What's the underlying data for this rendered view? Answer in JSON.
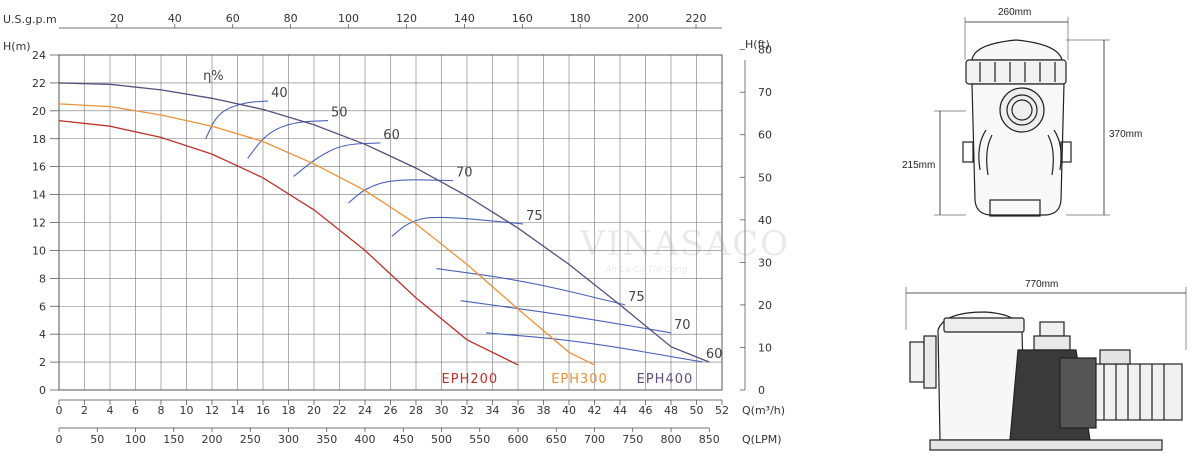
{
  "chart_data": {
    "type": "line",
    "axes": {
      "x_bottom": {
        "label": "Q(m³/h)",
        "min": 0,
        "max": 52,
        "ticks": [
          0,
          2,
          4,
          6,
          8,
          10,
          12,
          14,
          16,
          18,
          20,
          22,
          24,
          26,
          28,
          30,
          32,
          34,
          36,
          38,
          40,
          42,
          44,
          46,
          48,
          50,
          52
        ]
      },
      "x_lpm": {
        "label": "Q(LPM)",
        "ticks": [
          0,
          50,
          100,
          150,
          200,
          250,
          300,
          350,
          400,
          450,
          500,
          550,
          600,
          650,
          700,
          750,
          800,
          850
        ]
      },
      "x_top": {
        "label": "U.S.g.p.m",
        "ticks": [
          20,
          40,
          60,
          80,
          100,
          120,
          140,
          160,
          180,
          200,
          220
        ]
      },
      "y_left": {
        "label": "H(m)",
        "min": 0,
        "max": 24,
        "ticks": [
          0,
          2,
          4,
          6,
          8,
          10,
          12,
          14,
          16,
          18,
          20,
          22,
          24
        ]
      },
      "y_right": {
        "label": "H(ft)",
        "ticks": [
          0,
          10,
          20,
          30,
          40,
          50,
          60,
          70,
          80
        ]
      }
    },
    "grid": true,
    "series": [
      {
        "name": "EPH200",
        "color": "#b8322e",
        "x": [
          0,
          4,
          8,
          12,
          16,
          20,
          24,
          28,
          32,
          36
        ],
        "y": [
          19.3,
          18.9,
          18.1,
          16.9,
          15.2,
          12.9,
          10.0,
          6.6,
          3.6,
          1.8
        ]
      },
      {
        "name": "EPH300",
        "color": "#e8923a",
        "x": [
          0,
          4,
          8,
          12,
          16,
          20,
          24,
          28,
          32,
          36,
          40,
          42
        ],
        "y": [
          20.5,
          20.3,
          19.7,
          18.9,
          17.8,
          16.2,
          14.3,
          11.9,
          9.0,
          5.8,
          2.7,
          1.8
        ]
      },
      {
        "name": "EPH400",
        "color": "#5c4d7a",
        "x": [
          0,
          4,
          8,
          12,
          16,
          20,
          24,
          28,
          32,
          36,
          40,
          44,
          48,
          51
        ],
        "y": [
          22.0,
          21.9,
          21.5,
          20.9,
          20.1,
          19.0,
          17.6,
          15.9,
          13.9,
          11.6,
          9.0,
          6.1,
          3.1,
          2.0
        ]
      }
    ],
    "efficiency_label": "η%",
    "efficiency_curves": [
      {
        "label": "40",
        "points": [
          [
            11.5,
            18.0
          ],
          [
            12.5,
            19.9
          ],
          [
            14.5,
            20.6
          ],
          [
            16.4,
            20.7
          ]
        ]
      },
      {
        "label": "50",
        "points": [
          [
            14.8,
            16.6
          ],
          [
            16.3,
            18.4
          ],
          [
            18.4,
            19.2
          ],
          [
            21.1,
            19.3
          ]
        ]
      },
      {
        "label": "60",
        "points": [
          [
            18.4,
            15.3
          ],
          [
            20.3,
            16.7
          ],
          [
            22.3,
            17.6
          ],
          [
            25.2,
            17.7
          ]
        ]
      },
      {
        "label": "70",
        "points": [
          [
            22.7,
            13.4
          ],
          [
            24.1,
            14.5
          ],
          [
            26.3,
            15.1
          ],
          [
            30.9,
            15.0
          ]
        ]
      },
      {
        "label": "75",
        "points": [
          [
            26.1,
            11.0
          ],
          [
            27.4,
            12.0
          ],
          [
            29.4,
            12.5
          ],
          [
            36.4,
            11.9
          ]
        ]
      },
      {
        "label": "75",
        "points": [
          [
            29.6,
            8.7
          ],
          [
            36.7,
            7.8
          ],
          [
            44.4,
            6.1
          ]
        ]
      },
      {
        "label": "70",
        "points": [
          [
            31.5,
            6.4
          ],
          [
            40.2,
            5.3
          ],
          [
            48.0,
            4.1
          ]
        ]
      },
      {
        "label": "60",
        "points": [
          [
            33.5,
            4.1
          ],
          [
            41.0,
            3.5
          ],
          [
            50.5,
            2.0
          ]
        ]
      }
    ],
    "model_labels": [
      "EPH200",
      "EPH300",
      "EPH400"
    ]
  },
  "dimensions": {
    "front_width": "260mm",
    "front_height": "370mm",
    "inlet_height": "215mm",
    "side_length": "770mm"
  },
  "watermark": {
    "text": "VINASACO",
    "sub": "An Là Có Thi Công"
  }
}
